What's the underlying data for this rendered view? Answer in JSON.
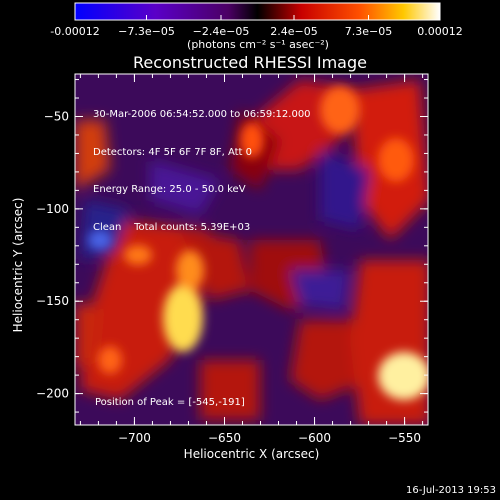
{
  "colorbar": {
    "tick_labels": [
      "-0.00012",
      "−7.3e−05",
      "−2.4e−05",
      "2.4e−05",
      "7.3e−05",
      "0.00012"
    ],
    "tick_values": [
      -0.00012,
      -7.3e-05,
      -2.4e-05,
      2.4e-05,
      7.3e-05,
      0.00012
    ],
    "units_label": "(photons cm⁻² s⁻¹ asec⁻²)"
  },
  "chart_data": {
    "type": "heatmap",
    "title": "Reconstructed RHESSI Image",
    "xlabel": "Heliocentric X (arcsec)",
    "ylabel": "Heliocentric Y (arcsec)",
    "xlim": [
      -733,
      -537
    ],
    "ylim": [
      -217,
      -27
    ],
    "x_ticks": [
      -700,
      -650,
      -600,
      -550
    ],
    "y_ticks": [
      -50,
      -100,
      -150,
      -200
    ],
    "value_range": [
      -0.00012,
      0.00012
    ],
    "colormap": "rhessi-blue-red-yellow",
    "annotations": [
      "30-Mar-2006 06:54:52.000 to 06:59:12.000",
      "Detectors: 4F 5F 6F 7F 8F, Att 0",
      "Energy Range: 25.0 - 50.0 keV",
      "Clean    Total counts: 5.39E+03"
    ],
    "peak_label": "Position of Peak = [-545,-191]",
    "peak": [
      -545,
      -191
    ]
  },
  "footer": {
    "date": "16-Jul-2013 19:53"
  }
}
